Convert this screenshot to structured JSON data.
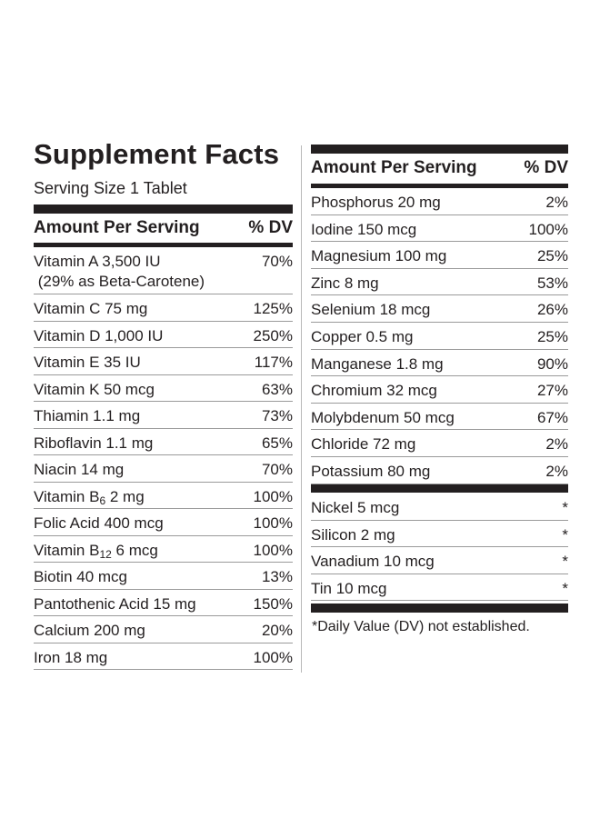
{
  "title": "Supplement Facts",
  "serving_size": "Serving Size 1 Tablet",
  "header": {
    "amount_label": "Amount Per Serving",
    "dv_label": "% DV"
  },
  "left_rows": [
    {
      "name": "Vitamin A 3,500 IU",
      "name2": "(29% as Beta-Carotene)",
      "dv": "70%"
    },
    {
      "name": "Vitamin C 75 mg",
      "dv": "125%"
    },
    {
      "name": "Vitamin D 1,000 IU",
      "dv": "250%"
    },
    {
      "name": "Vitamin E 35 IU",
      "dv": "117%"
    },
    {
      "name": "Vitamin K 50 mcg",
      "dv": "63%"
    },
    {
      "name": "Thiamin 1.1 mg",
      "dv": "73%"
    },
    {
      "name": "Riboflavin 1.1 mg",
      "dv": "65%"
    },
    {
      "name": "Niacin 14 mg",
      "dv": "70%"
    },
    {
      "name_pre": "Vitamin B",
      "name_sub": "6",
      "name_post": " 2 mg",
      "dv": "100%"
    },
    {
      "name": "Folic Acid 400 mcg",
      "dv": "100%"
    },
    {
      "name_pre": "Vitamin B",
      "name_sub": "12",
      "name_post": " 6 mcg",
      "dv": "100%"
    },
    {
      "name": "Biotin 40 mcg",
      "dv": "13%"
    },
    {
      "name": "Pantothenic Acid 15 mg",
      "dv": "150%"
    },
    {
      "name": "Calcium 200 mg",
      "dv": "20%"
    },
    {
      "name": "Iron 18 mg",
      "dv": "100%"
    }
  ],
  "right_rows": [
    {
      "name": "Phosphorus 20 mg",
      "dv": "2%"
    },
    {
      "name": "Iodine 150 mcg",
      "dv": "100%"
    },
    {
      "name": "Magnesium 100 mg",
      "dv": "25%"
    },
    {
      "name": "Zinc 8 mg",
      "dv": "53%"
    },
    {
      "name": "Selenium 18 mcg",
      "dv": "26%"
    },
    {
      "name": "Copper 0.5 mg",
      "dv": "25%"
    },
    {
      "name": "Manganese 1.8 mg",
      "dv": "90%"
    },
    {
      "name": "Chromium 32 mcg",
      "dv": "27%"
    },
    {
      "name": "Molybdenum 50 mcg",
      "dv": "67%"
    },
    {
      "name": "Chloride 72 mg",
      "dv": "2%"
    },
    {
      "name": "Potassium 80 mg",
      "dv": "2%"
    }
  ],
  "right_rows2": [
    {
      "name": "Nickel 5 mcg",
      "dv": "*"
    },
    {
      "name": "Silicon 2 mg",
      "dv": "*"
    },
    {
      "name": "Vanadium 10 mcg",
      "dv": "*"
    },
    {
      "name": "Tin 10 mcg",
      "dv": "*"
    }
  ],
  "footnote": "*Daily Value (DV) not established."
}
